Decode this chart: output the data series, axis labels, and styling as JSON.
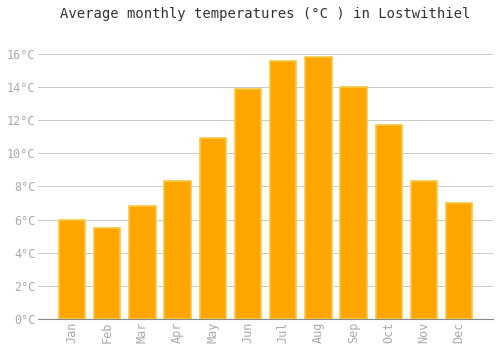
{
  "title": "Average monthly temperatures (°C ) in Lostwithiel",
  "months": [
    "Jan",
    "Feb",
    "Mar",
    "Apr",
    "May",
    "Jun",
    "Jul",
    "Aug",
    "Sep",
    "Oct",
    "Nov",
    "Dec"
  ],
  "values": [
    6.0,
    5.5,
    6.8,
    8.3,
    10.9,
    13.9,
    15.6,
    15.8,
    14.0,
    11.7,
    8.3,
    7.0
  ],
  "bar_color": "#FFA500",
  "bar_edge_color": "#F5C842",
  "background_color": "#FFFFFF",
  "grid_color": "#CCCCCC",
  "ylim": [
    0,
    17.5
  ],
  "yticks": [
    0,
    2,
    4,
    6,
    8,
    10,
    12,
    14,
    16
  ],
  "title_fontsize": 10,
  "tick_fontsize": 8.5,
  "tick_color": "#AAAAAA",
  "font_family": "monospace",
  "bar_width": 0.75
}
